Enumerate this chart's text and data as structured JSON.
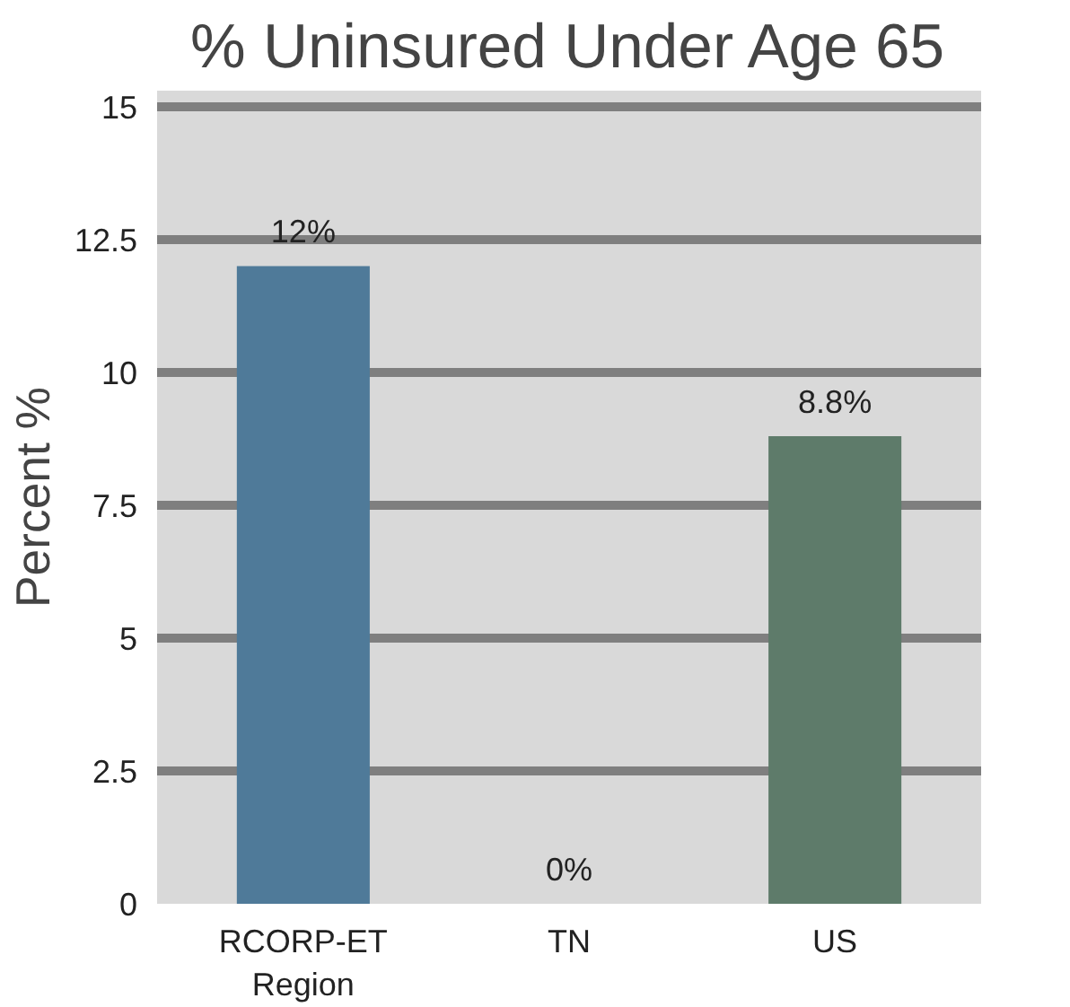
{
  "chart_data": {
    "type": "bar",
    "title": "% Uninsured Under Age 65",
    "ylabel": "Percent %",
    "categories": [
      "RCORP-ET Region",
      "TN",
      "US"
    ],
    "values": [
      12,
      0,
      8.8
    ],
    "colors": [
      "#4f7a99",
      "#6b8f7a",
      "#5e7b6a"
    ],
    "value_labels": [
      "12%",
      "0%",
      "8.8%"
    ],
    "ylim": [
      0,
      15.3
    ],
    "yticks": [
      0,
      2.5,
      5,
      7.5,
      10,
      12.5,
      15
    ],
    "grid": "y"
  }
}
